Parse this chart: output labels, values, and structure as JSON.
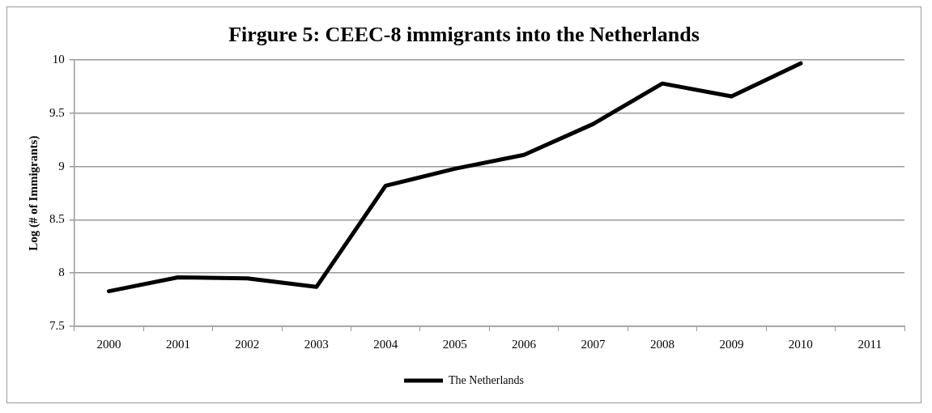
{
  "chart_data": {
    "type": "line",
    "title": "Firgure 5: CEEC-8 immigrants into the Netherlands",
    "ylabel": "Log (# of Immigrants)",
    "categories": [
      "2000",
      "2001",
      "2002",
      "2003",
      "2004",
      "2005",
      "2006",
      "2007",
      "2008",
      "2009",
      "2010",
      "2011"
    ],
    "series": [
      {
        "name": "The Netherlands",
        "color": "#000000",
        "values": [
          7.83,
          7.96,
          7.95,
          7.87,
          8.82,
          8.98,
          9.11,
          9.4,
          9.78,
          9.66,
          9.97,
          null
        ]
      }
    ],
    "ylim": [
      7.5,
      10
    ],
    "yticks": [
      7.5,
      8,
      8.5,
      9,
      9.5,
      10
    ],
    "grid": "y",
    "legend": "bottom",
    "marker": "none",
    "line_style": "solid"
  }
}
